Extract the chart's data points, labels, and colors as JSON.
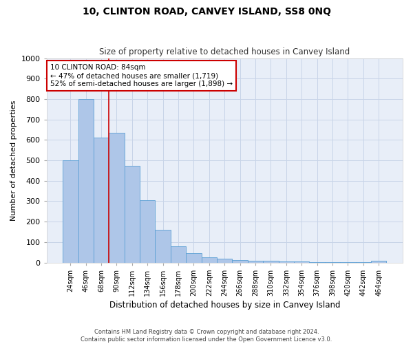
{
  "title": "10, CLINTON ROAD, CANVEY ISLAND, SS8 0NQ",
  "subtitle": "Size of property relative to detached houses in Canvey Island",
  "xlabel": "Distribution of detached houses by size in Canvey Island",
  "ylabel": "Number of detached properties",
  "footer_line1": "Contains HM Land Registry data © Crown copyright and database right 2024.",
  "footer_line2": "Contains public sector information licensed under the Open Government Licence v3.0.",
  "categories": [
    "24sqm",
    "46sqm",
    "68sqm",
    "90sqm",
    "112sqm",
    "134sqm",
    "156sqm",
    "178sqm",
    "200sqm",
    "222sqm",
    "244sqm",
    "266sqm",
    "288sqm",
    "310sqm",
    "332sqm",
    "354sqm",
    "376sqm",
    "398sqm",
    "420sqm",
    "442sqm",
    "464sqm"
  ],
  "values": [
    500,
    800,
    610,
    635,
    472,
    305,
    160,
    78,
    45,
    24,
    18,
    12,
    10,
    8,
    5,
    4,
    3,
    2,
    1,
    1,
    8
  ],
  "bar_color": "#aec6e8",
  "bar_edge_color": "#5a9fd4",
  "background_color": "#e8eef8",
  "ylim": [
    0,
    1000
  ],
  "yticks": [
    0,
    100,
    200,
    300,
    400,
    500,
    600,
    700,
    800,
    900,
    1000
  ],
  "annotation_text": "10 CLINTON ROAD: 84sqm\n← 47% of detached houses are smaller (1,719)\n52% of semi-detached houses are larger (1,898) →",
  "vline_x": 2.5,
  "annotation_box_color": "#ffffff",
  "annotation_border_color": "#cc0000",
  "grid_color": "#c8d4e8",
  "title_fontsize": 10,
  "subtitle_fontsize": 8.5
}
